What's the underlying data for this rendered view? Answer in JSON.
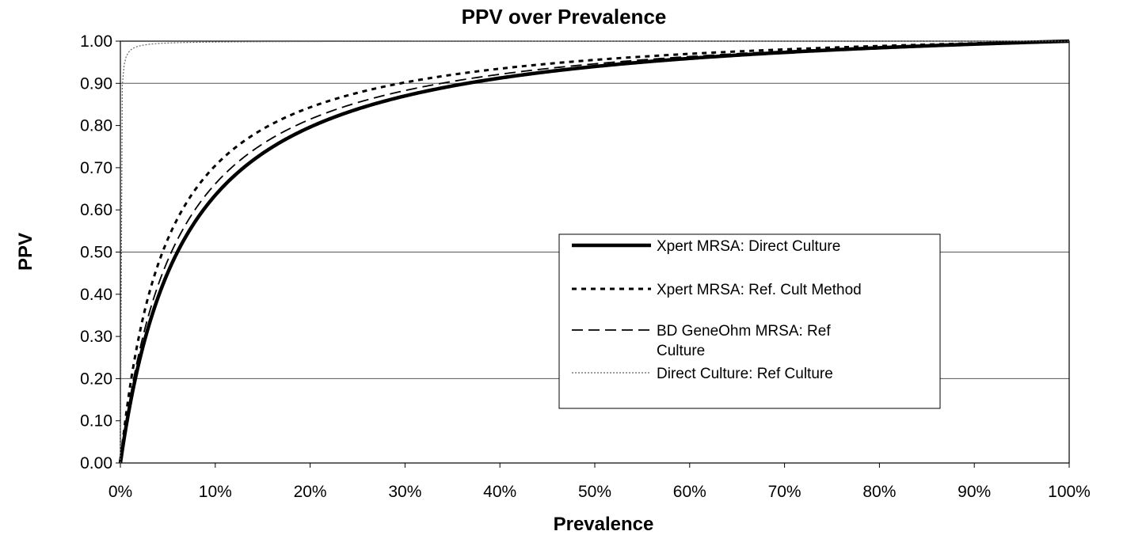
{
  "chart_data": {
    "type": "line",
    "title": "PPV over Prevalence",
    "xlabel": "Prevalence",
    "ylabel": "PPV",
    "xlim": [
      0,
      1
    ],
    "ylim": [
      0,
      1
    ],
    "x_tick_labels": [
      "0%",
      "10%",
      "20%",
      "30%",
      "40%",
      "50%",
      "60%",
      "70%",
      "80%",
      "90%",
      "100%"
    ],
    "y_tick_labels": [
      "0.00",
      "0.10",
      "0.20",
      "0.30",
      "0.40",
      "0.50",
      "0.60",
      "0.70",
      "0.80",
      "0.90",
      "1.00"
    ],
    "grid": "horizontal",
    "legend_position": "center-right",
    "series": [
      {
        "name": "Xpert MRSA: Direct Culture",
        "style": "solid-thick",
        "color": "#000000",
        "sensitivity": 0.86,
        "specificity": 0.945
      },
      {
        "name": "Xpert MRSA: Ref. Cult Method",
        "style": "dotted-bold",
        "color": "#000000",
        "sensitivity": 0.86,
        "specificity": 0.96
      },
      {
        "name": "BD GeneOhm MRSA: Ref Culture",
        "style": "dashed-thin",
        "color": "#000000",
        "sensitivity": 0.88,
        "specificity": 0.95
      },
      {
        "name": "Direct Culture: Ref Culture",
        "style": "dotted-thin",
        "color": "#666666",
        "sensitivity": 0.85,
        "specificity": 0.9998
      }
    ]
  }
}
